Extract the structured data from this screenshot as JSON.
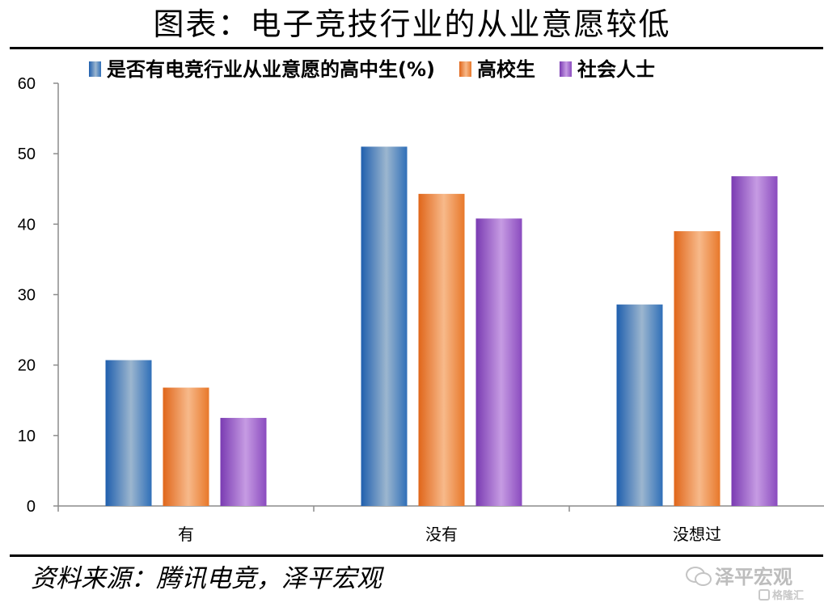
{
  "title": "图表：电子竞技行业的从业意愿较低",
  "source": "资料来源：腾讯电竞，泽平宏观",
  "watermark": {
    "text": "泽平宏观",
    "icon": "wechat-icon"
  },
  "corner_watermark": {
    "text": "格隆汇",
    "icon": "gelonghui-logo-icon"
  },
  "colors": {
    "series": [
      "#2f6fb8",
      "#e8782a",
      "#8a4bbf"
    ],
    "axis": "#8c8c8c"
  },
  "chart_data": {
    "type": "bar",
    "categories": [
      "有",
      "没有",
      "没想过"
    ],
    "series": [
      {
        "name": "是否有电竞行业从业意愿的高中生(%)",
        "values": [
          20.7,
          51.0,
          28.6
        ]
      },
      {
        "name": "高校生",
        "values": [
          16.8,
          44.3,
          39.0
        ]
      },
      {
        "name": "社会人士",
        "values": [
          12.5,
          40.8,
          46.8
        ]
      }
    ],
    "yticks": [
      0,
      10,
      20,
      30,
      40,
      50,
      60
    ],
    "ylim": [
      0,
      60
    ],
    "grid": false,
    "legend_position": "top"
  }
}
